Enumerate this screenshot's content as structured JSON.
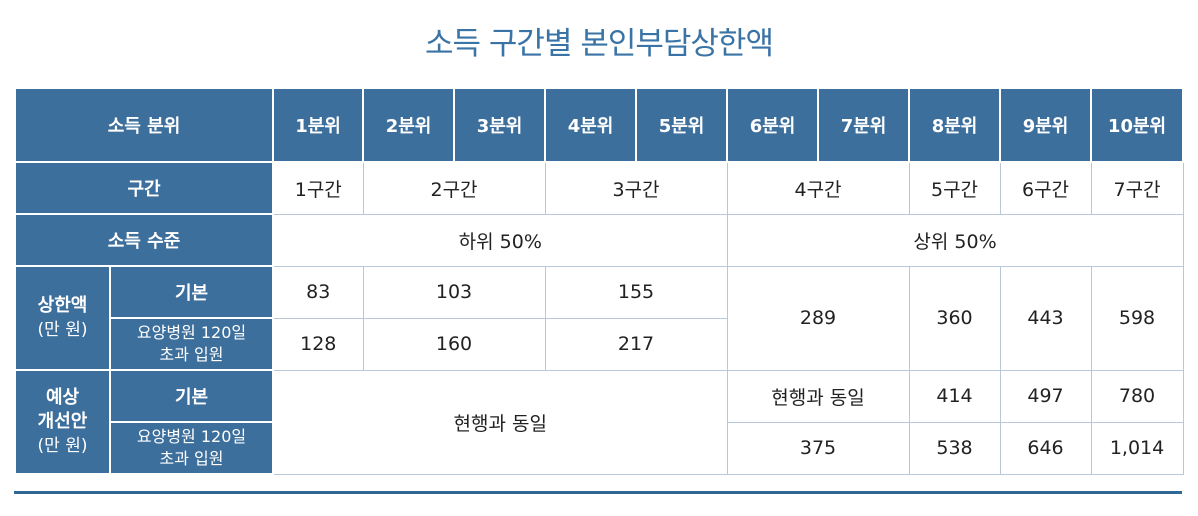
{
  "title": "소득 구간별 본인부담상한액",
  "header": {
    "label": "소득 분위",
    "deciles": [
      "1분위",
      "2분위",
      "3분위",
      "4분위",
      "5분위",
      "6분위",
      "7분위",
      "8분위",
      "9분위",
      "10분위"
    ]
  },
  "bracket": {
    "label": "구간",
    "values": [
      "1구간",
      "2구간",
      "3구간",
      "4구간",
      "5구간",
      "6구간",
      "7구간"
    ]
  },
  "income_level": {
    "label": "소득 수준",
    "lower": "하위 50%",
    "upper": "상위 50%"
  },
  "cap": {
    "label_main": "상한액",
    "label_unit": "(만 원)",
    "basic_label": "기본",
    "long_stay_label_1": "요양병원 120일",
    "long_stay_label_2": "초과 입원",
    "basic": [
      "83",
      "103",
      "155"
    ],
    "long_stay": [
      "128",
      "160",
      "217"
    ],
    "merged": [
      "289",
      "360",
      "443",
      "598"
    ]
  },
  "proposal": {
    "label_main_1": "예상",
    "label_main_2": "개선안",
    "label_unit": "(만 원)",
    "basic_label": "기본",
    "long_stay_label_1": "요양병원 120일",
    "long_stay_label_2": "초과 입원",
    "same_as_current": "현행과 동일",
    "basic_same": "현행과 동일",
    "basic": [
      "414",
      "497",
      "780"
    ],
    "long_stay": [
      "375",
      "538",
      "646",
      "1,014"
    ]
  }
}
